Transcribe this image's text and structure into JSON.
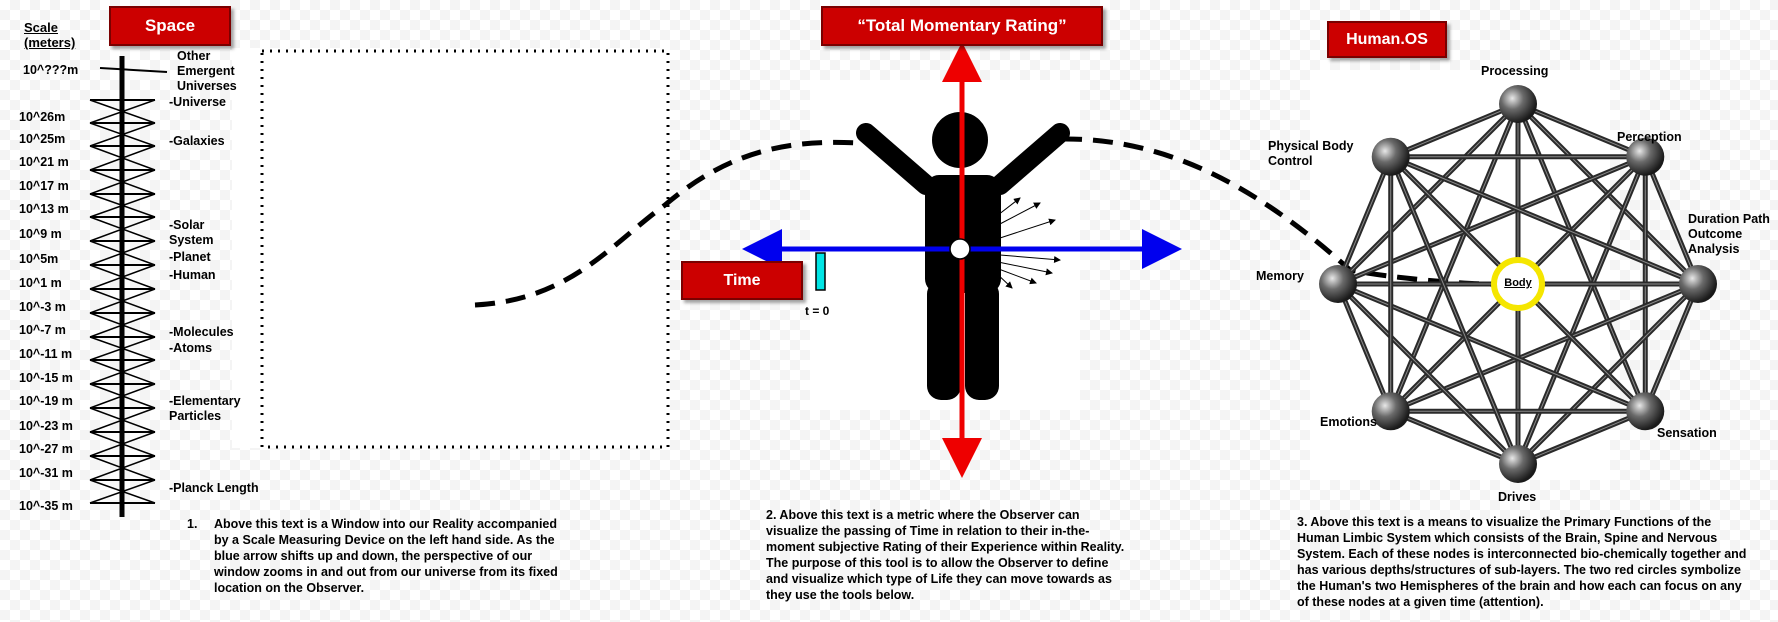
{
  "space": {
    "button_label": "Space",
    "scale_title": "Scale\n(meters)",
    "top_scale": "10^???m",
    "other_universes": "Other\nEmergent\nUniverses",
    "scale_values": [
      "10^26m",
      "10^25m",
      "10^21 m",
      "10^17 m",
      "10^13 m",
      "10^9 m",
      "10^5m",
      "10^1 m",
      "10^-3 m",
      "10^-7 m",
      "10^-11 m",
      "10^-15 m",
      "10^-19 m",
      "10^-23 m",
      "10^-27 m",
      "10^-31 m",
      "10^-35 m"
    ],
    "markers": [
      "-Universe",
      "-Galaxies",
      "-Solar\nSystem",
      "-Planet",
      "-Human",
      "-Molecules",
      "-Atoms",
      "-Elementary\nParticles",
      "-Planck Length"
    ],
    "description_number": "1.",
    "description": "Above this text is a Window into our Reality accompanied by a Scale Measuring Device on the left hand side. As the blue arrow shifts up and down, the perspective of our window zooms in and out from our universe from its fixed location on the Observer."
  },
  "rating": {
    "button_label": "“Total Momentary Rating”",
    "time_label": "Time",
    "t_zero": "t = 0",
    "description": "2.  Above this text is a metric where the Observer can visualize the passing of Time in relation to their in-the-moment subjective Rating of their Experience within Reality. The purpose of this tool is to allow the Observer to define and visualize which type of Life they can move towards as they use the tools below."
  },
  "humanos": {
    "button_label": "Human.OS",
    "nodes": {
      "processing": "Processing",
      "perception": "Perception",
      "duration": "Duration Path\nOutcome\nAnalysis",
      "sensation": "Sensation",
      "drives": "Drives",
      "emotions": "Emotions",
      "memory": "Memory",
      "physical": "Physical Body\nControl"
    },
    "center": "Body",
    "description": "3. Above this text is a means to visualize the Primary Functions of the Human Limbic System which consists of the Brain, Spine and Nervous System. Each of these nodes is interconnected bio-chemically together and has various depths/structures of sub-layers. The two red circles symbolize the Human's two Hemispheres of the brain and how each can focus on any of these nodes at a given time (attention)."
  },
  "colors": {
    "red": "#cc0000",
    "blue": "#0000ee",
    "cyan": "#00e5e5",
    "yellow": "#ffee00"
  }
}
